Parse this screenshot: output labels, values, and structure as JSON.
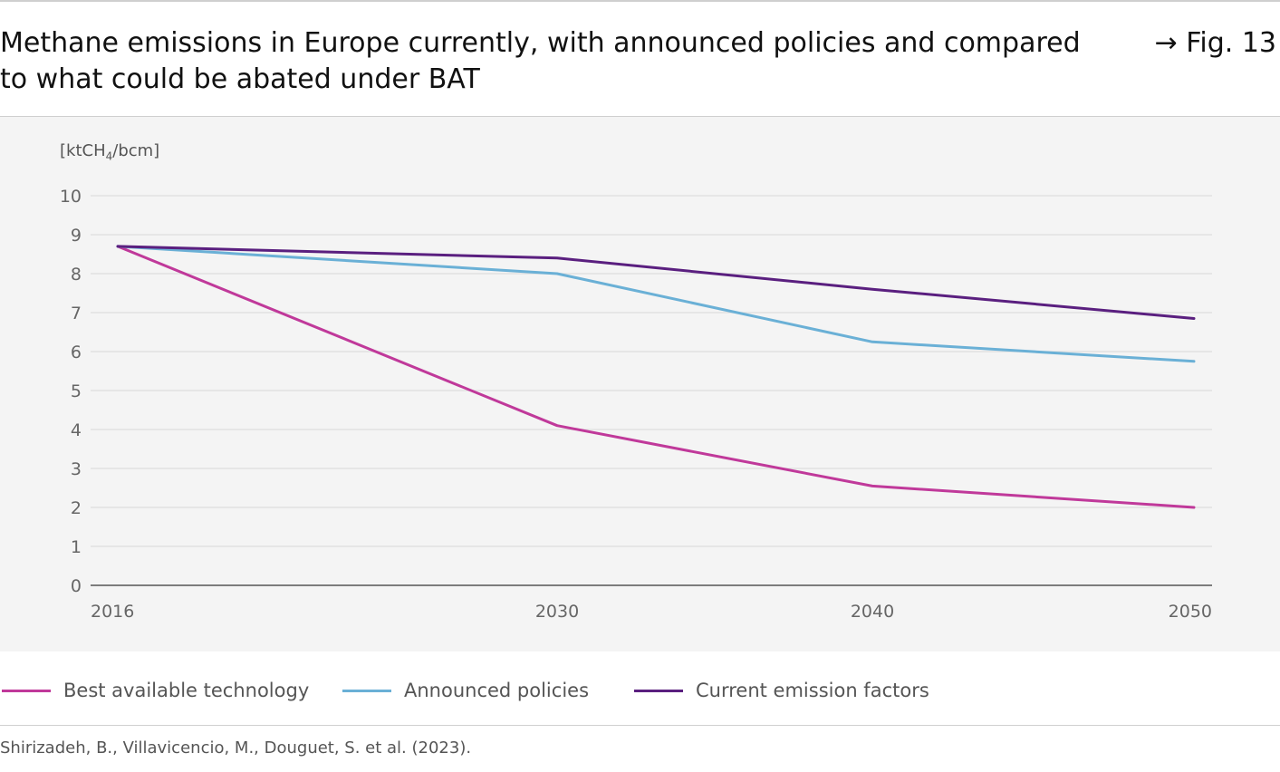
{
  "header": {
    "title": "Methane emissions in Europe currently, with announced policies and compared to what could be abated under BAT",
    "figure_ref": "→ Fig. 13"
  },
  "colors": {
    "bat": "#c0399a",
    "announced": "#6ab0d6",
    "current": "#5a1f7f",
    "grid": "#e2e2e2",
    "axis": "#555555",
    "plot_bg": "#f4f4f4"
  },
  "chart_data": {
    "type": "line",
    "unit_label_main": "[ktCH",
    "unit_label_sub": "4",
    "unit_label_end": "/bcm]",
    "x": [
      2016,
      2030,
      2040,
      2050
    ],
    "xticks": [
      "2016",
      "2030",
      "2040",
      "2050"
    ],
    "yticks": [
      "0",
      "1",
      "2",
      "3",
      "4",
      "5",
      "6",
      "7",
      "8",
      "9",
      "10"
    ],
    "ylim": [
      0,
      10
    ],
    "grid": true,
    "legend_position": "bottom",
    "series": [
      {
        "name": "Best available technology",
        "values": [
          8.7,
          4.1,
          2.55,
          2.0
        ]
      },
      {
        "name": "Announced policies",
        "values": [
          8.7,
          8.0,
          6.25,
          5.75
        ]
      },
      {
        "name": "Current emission factors",
        "values": [
          8.7,
          8.4,
          7.6,
          6.85
        ]
      }
    ]
  },
  "source": "Shirizadeh, B., Villavicencio, M., Douguet, S. et al. (2023)."
}
